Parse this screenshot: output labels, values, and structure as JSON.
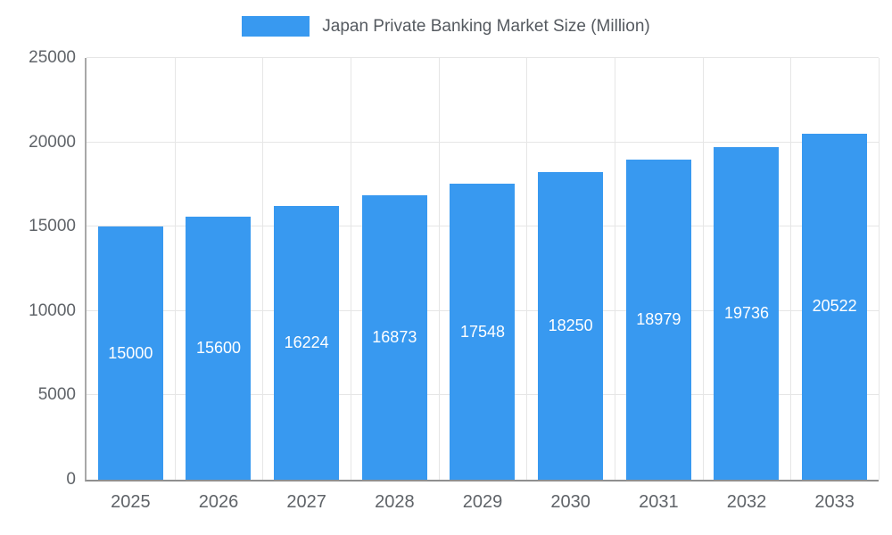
{
  "chart_data": {
    "type": "bar",
    "title": "Japan Private Banking Market Size (Million)",
    "categories": [
      "2025",
      "2026",
      "2027",
      "2028",
      "2029",
      "2030",
      "2031",
      "2032",
      "2033"
    ],
    "values": [
      15000,
      15600,
      16224,
      16873,
      17548,
      18250,
      18979,
      19736,
      20522
    ],
    "xlabel": "",
    "ylabel": "",
    "ylim": [
      0,
      25000
    ],
    "ytick_step": 5000,
    "grid": true,
    "legend_position": "top",
    "bar_color": "#3899f0",
    "label_color": "#ffffff",
    "grid_color": "#e6e6e6",
    "axis_text_color": "#5f6368"
  }
}
